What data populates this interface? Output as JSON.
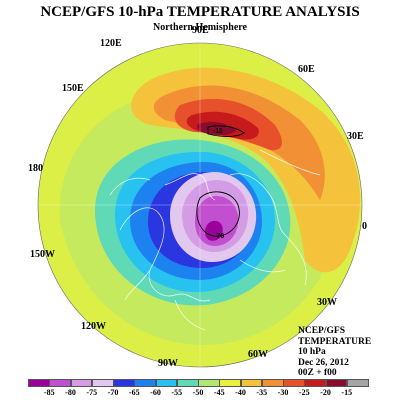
{
  "header": {
    "title": "NCEP/GFS 10-hPa TEMPERATURE ANALYSIS",
    "subtitle": "Northern Hemisphere"
  },
  "longitude_labels": {
    "lon_90e": "90E",
    "lon_120e": "120E",
    "lon_60e": "60E",
    "lon_150e": "150E",
    "lon_30e": "30E",
    "lon_180": "180",
    "lon_0": "0",
    "lon_150w": "150W",
    "lon_30w": "30W",
    "lon_120w": "120W",
    "lon_60w": "60W",
    "lon_90w": "90W"
  },
  "info": {
    "source": "NCEP/GFS",
    "variable": "TEMPERATURE",
    "level": "10 hPa",
    "date": "Dec 26, 2012",
    "time": "00Z + f00"
  },
  "colorbar": {
    "ticks": [
      "-85",
      "-80",
      "-75",
      "-70",
      "-65",
      "-60",
      "-55",
      "-50",
      "-45",
      "-40",
      "-35",
      "-30",
      "-25",
      "-20",
      "-15"
    ],
    "colors": [
      "#9a009a",
      "#c24fd0",
      "#d59ce6",
      "#e2c7ef",
      "#2a36e0",
      "#1d82f0",
      "#27c2f0",
      "#5fd9b6",
      "#b1e873",
      "#ebf040",
      "#f4c23b",
      "#f29035",
      "#e6502a",
      "#c71a1a",
      "#8b0b2e",
      "#a5a5a5"
    ]
  },
  "map": {
    "contour_labels": {
      "low_center": "-76",
      "high_center": "-11"
    }
  }
}
